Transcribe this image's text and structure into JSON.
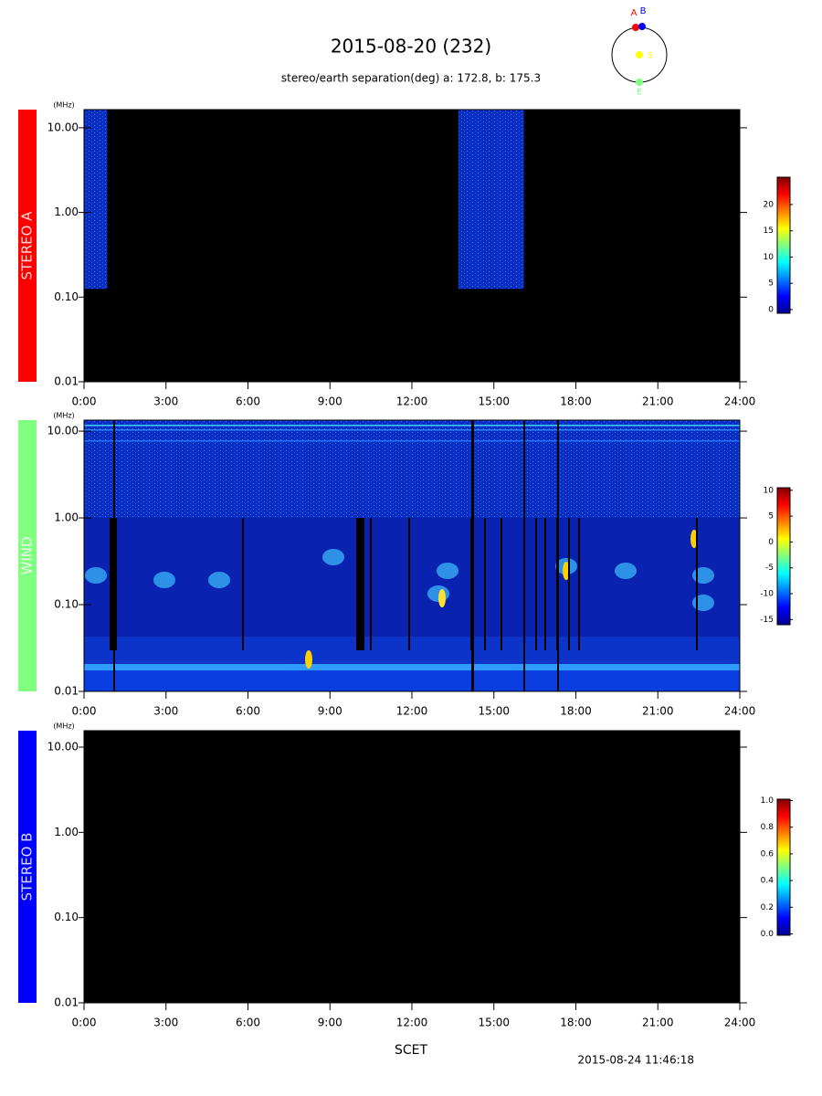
{
  "header": {
    "title": "2015-08-20 (232)",
    "subtitle": "stereo/earth separation(deg) a: 172.8, b: 175.3"
  },
  "orbit": {
    "labels": [
      "A",
      "B",
      "S",
      "E"
    ]
  },
  "footer": {
    "timestamp": "2015-08-24 11:46:18"
  },
  "chart_data": [
    {
      "type": "spectrogram",
      "label": "STEREO A",
      "label_color": "#ff0000",
      "y_unit": "(MHz)",
      "log_y": true,
      "xlim": [
        0,
        24
      ],
      "xticks": [
        {
          "value": 0,
          "label": "0:00"
        },
        {
          "value": 3,
          "label": "3:00"
        },
        {
          "value": 6,
          "label": "6:00"
        },
        {
          "value": 9,
          "label": "9:00"
        },
        {
          "value": 12,
          "label": "12:00"
        },
        {
          "value": 15,
          "label": "15:00"
        },
        {
          "value": 18,
          "label": "18:00"
        },
        {
          "value": 21,
          "label": "21:00"
        },
        {
          "value": 24,
          "label": "24:00"
        }
      ],
      "ylim": [
        0.01,
        16.4
      ],
      "yticks": [
        {
          "value": 0.01,
          "label": "0.01"
        },
        {
          "value": 0.1,
          "label": "0.10"
        },
        {
          "value": 1,
          "label": "1.00"
        },
        {
          "value": 10,
          "label": "10.00"
        }
      ],
      "coverage": [
        {
          "start": 0,
          "end": 0.85,
          "freq_min": 0.125
        },
        {
          "start": 13.7,
          "end": 16.1,
          "freq_min": 0.125
        }
      ],
      "colorbar_lim": [
        -0.7,
        25.2
      ],
      "colorbar_ticks": [
        0,
        5,
        10,
        15,
        20
      ]
    },
    {
      "type": "spectrogram",
      "label": "WIND",
      "label_color": "#80ff80",
      "y_unit": "(MHz)",
      "log_y": true,
      "xlim": [
        0,
        24
      ],
      "xticks": [
        {
          "value": 0,
          "label": "0:00"
        },
        {
          "value": 3,
          "label": "3:00"
        },
        {
          "value": 6,
          "label": "6:00"
        },
        {
          "value": 9,
          "label": "9:00"
        },
        {
          "value": 12,
          "label": "12:00"
        },
        {
          "value": 15,
          "label": "15:00"
        },
        {
          "value": 18,
          "label": "18:00"
        },
        {
          "value": 21,
          "label": "21:00"
        },
        {
          "value": 24,
          "label": "24:00"
        }
      ],
      "ylim": [
        0.01,
        13.4
      ],
      "yticks": [
        {
          "value": 0.01,
          "label": "0.01"
        },
        {
          "value": 0.1,
          "label": "0.10"
        },
        {
          "value": 1,
          "label": "1.00"
        },
        {
          "value": 10,
          "label": "10.00"
        }
      ],
      "colorbar_lim": [
        -16,
        10.5
      ],
      "colorbar_ticks": [
        10,
        5,
        0,
        -5,
        -10,
        -15
      ]
    },
    {
      "type": "spectrogram",
      "label": "STEREO B",
      "label_color": "#0000ff",
      "y_unit": "(MHz)",
      "log_y": true,
      "x_label": "SCET",
      "xlim": [
        0,
        24
      ],
      "xticks": [
        {
          "value": 0,
          "label": "0:00"
        },
        {
          "value": 3,
          "label": "3:00"
        },
        {
          "value": 6,
          "label": "6:00"
        },
        {
          "value": 9,
          "label": "9:00"
        },
        {
          "value": 12,
          "label": "12:00"
        },
        {
          "value": 15,
          "label": "15:00"
        },
        {
          "value": 18,
          "label": "18:00"
        },
        {
          "value": 21,
          "label": "21:00"
        },
        {
          "value": 24,
          "label": "24:00"
        }
      ],
      "ylim": [
        0.01,
        15.6
      ],
      "yticks": [
        {
          "value": 0.01,
          "label": "0.01"
        },
        {
          "value": 0.1,
          "label": "0.10"
        },
        {
          "value": 1,
          "label": "1.00"
        },
        {
          "value": 10,
          "label": "10.00"
        }
      ],
      "colorbar_lim": [
        -0.01,
        1.01
      ],
      "colorbar_ticks": [
        {
          "value": 0,
          "label": "0.0"
        },
        {
          "value": 0.2,
          "label": "0.2"
        },
        {
          "value": 0.4,
          "label": "0.4"
        },
        {
          "value": 0.6,
          "label": "0.6"
        },
        {
          "value": 0.8,
          "label": "0.8"
        },
        {
          "value": 1,
          "label": "1.0"
        }
      ]
    }
  ]
}
